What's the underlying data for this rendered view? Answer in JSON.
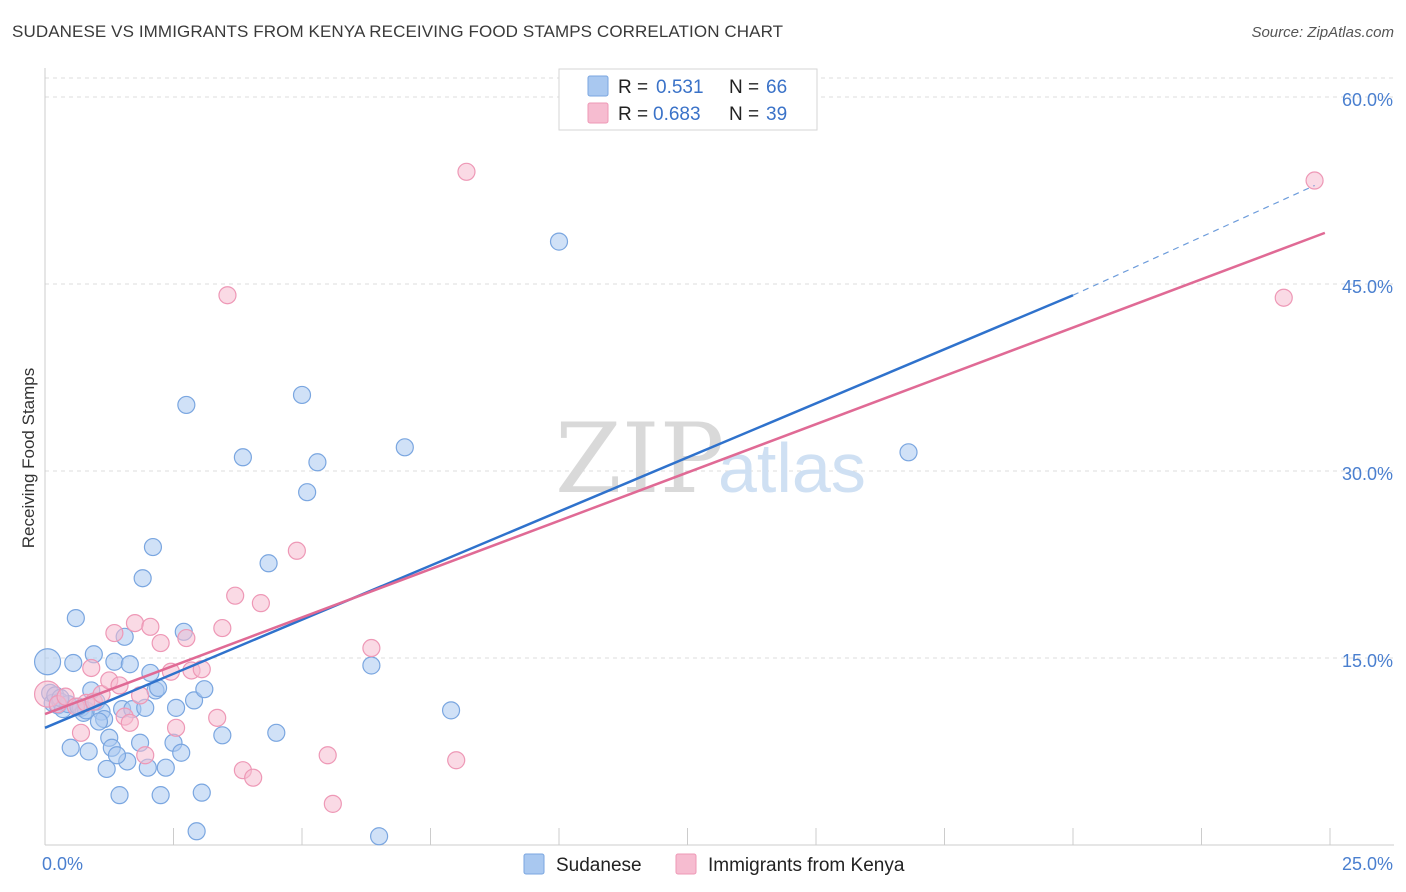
{
  "header": {
    "title": "SUDANESE VS IMMIGRANTS FROM KENYA RECEIVING FOOD STAMPS CORRELATION CHART",
    "source": "Source: ZipAtlas.com"
  },
  "watermark": {
    "part1": "ZIP",
    "part2": "atlas"
  },
  "colors": {
    "sudanese_fill": "#a9c8f0",
    "sudanese_stroke": "#7aa6e0",
    "sudanese_line": "#2f72cc",
    "kenya_fill": "#f6bcd0",
    "kenya_stroke": "#ee98b6",
    "kenya_line": "#e06a95",
    "grid": "#dddddd",
    "tick_text": "#4a7fcf"
  },
  "legend": {
    "rows": [
      {
        "r_label": "R =",
        "r_value": "0.531",
        "n_label": "N =",
        "n_value": "66"
      },
      {
        "r_label": "R =",
        "r_value": "0.683",
        "n_label": "N =",
        "n_value": "39"
      }
    ]
  },
  "chart_data": {
    "type": "scatter",
    "title": "SUDANESE VS IMMIGRANTS FROM KENYA RECEIVING FOOD STAMPS CORRELATION CHART",
    "xlabel": "",
    "ylabel": "Receiving Food Stamps",
    "xlim": [
      0,
      25
    ],
    "ylim": [
      0,
      60
    ],
    "x_tick_labels": [
      "0.0%",
      "25.0%"
    ],
    "y_ticks": [
      15,
      30,
      45,
      60
    ],
    "y_tick_labels": [
      "15.0%",
      "30.0%",
      "45.0%",
      "60.0%"
    ],
    "grid": true,
    "legend_position": "top-center",
    "series": [
      {
        "name": "Sudanese",
        "R": 0.531,
        "N": 66,
        "trend": {
          "x0": 0,
          "y0": 9.4,
          "x1": 20,
          "y1": 44.1,
          "dash_x1": 24.7,
          "dash_y1": 52.9
        },
        "points": [
          [
            0.05,
            14.7
          ],
          [
            0.1,
            12.2
          ],
          [
            0.15,
            11.4
          ],
          [
            0.2,
            12.0
          ],
          [
            0.25,
            11.2
          ],
          [
            0.3,
            11.5
          ],
          [
            0.35,
            10.9
          ],
          [
            0.45,
            11.3
          ],
          [
            0.55,
            14.6
          ],
          [
            0.6,
            18.2
          ],
          [
            0.5,
            7.8
          ],
          [
            0.7,
            11.0
          ],
          [
            0.75,
            10.6
          ],
          [
            0.8,
            10.8
          ],
          [
            0.85,
            7.5
          ],
          [
            0.95,
            15.3
          ],
          [
            1.0,
            11.5
          ],
          [
            1.1,
            10.7
          ],
          [
            1.15,
            10.1
          ],
          [
            1.2,
            6.1
          ],
          [
            1.25,
            8.6
          ],
          [
            1.3,
            7.8
          ],
          [
            1.35,
            14.7
          ],
          [
            1.45,
            4.0
          ],
          [
            1.5,
            10.9
          ],
          [
            1.55,
            16.7
          ],
          [
            1.6,
            6.7
          ],
          [
            1.65,
            14.5
          ],
          [
            1.7,
            10.9
          ],
          [
            1.85,
            8.2
          ],
          [
            1.9,
            21.4
          ],
          [
            1.95,
            11.0
          ],
          [
            2.0,
            6.2
          ],
          [
            2.05,
            13.8
          ],
          [
            2.1,
            23.9
          ],
          [
            2.15,
            12.4
          ],
          [
            2.2,
            12.6
          ],
          [
            2.25,
            4.0
          ],
          [
            2.35,
            6.2
          ],
          [
            2.5,
            8.2
          ],
          [
            2.55,
            11.0
          ],
          [
            2.65,
            7.4
          ],
          [
            2.7,
            17.1
          ],
          [
            2.75,
            35.3
          ],
          [
            2.9,
            11.6
          ],
          [
            2.95,
            1.1
          ],
          [
            3.05,
            4.2
          ],
          [
            3.1,
            12.5
          ],
          [
            3.45,
            8.8
          ],
          [
            3.85,
            31.1
          ],
          [
            4.35,
            22.6
          ],
          [
            4.5,
            9.0
          ],
          [
            5.0,
            36.1
          ],
          [
            5.1,
            28.3
          ],
          [
            5.3,
            30.7
          ],
          [
            6.35,
            14.4
          ],
          [
            6.5,
            0.7
          ],
          [
            7.0,
            31.9
          ],
          [
            7.9,
            10.8
          ],
          [
            10.0,
            48.4
          ],
          [
            16.8,
            31.5
          ],
          [
            0.3,
            11.8
          ],
          [
            0.65,
            11.1
          ],
          [
            1.05,
            9.9
          ],
          [
            1.4,
            7.2
          ],
          [
            0.9,
            12.4
          ]
        ]
      },
      {
        "name": "Immigrants from Kenya",
        "R": 0.683,
        "N": 39,
        "trend": {
          "x0": 0,
          "y0": 10.5,
          "x1": 24.9,
          "y1": 49.1
        },
        "points": [
          [
            0.05,
            12.1
          ],
          [
            0.25,
            11.3
          ],
          [
            0.4,
            11.9
          ],
          [
            0.6,
            11.1
          ],
          [
            0.7,
            9.0
          ],
          [
            0.8,
            11.4
          ],
          [
            0.9,
            14.2
          ],
          [
            0.95,
            11.5
          ],
          [
            1.1,
            12.1
          ],
          [
            1.25,
            13.2
          ],
          [
            1.35,
            17.0
          ],
          [
            1.45,
            12.8
          ],
          [
            1.55,
            10.3
          ],
          [
            1.65,
            9.8
          ],
          [
            1.75,
            17.8
          ],
          [
            1.85,
            12.0
          ],
          [
            1.95,
            7.2
          ],
          [
            2.05,
            17.5
          ],
          [
            2.25,
            16.2
          ],
          [
            2.45,
            13.9
          ],
          [
            2.55,
            9.4
          ],
          [
            2.75,
            16.6
          ],
          [
            2.85,
            14.0
          ],
          [
            3.05,
            14.1
          ],
          [
            3.35,
            10.2
          ],
          [
            3.45,
            17.4
          ],
          [
            3.55,
            44.1
          ],
          [
            3.7,
            20.0
          ],
          [
            3.85,
            6.0
          ],
          [
            4.05,
            5.4
          ],
          [
            4.2,
            19.4
          ],
          [
            4.9,
            23.6
          ],
          [
            5.5,
            7.2
          ],
          [
            5.6,
            3.3
          ],
          [
            6.35,
            15.8
          ],
          [
            8.0,
            6.8
          ],
          [
            8.2,
            54.0
          ],
          [
            24.1,
            43.9
          ],
          [
            24.7,
            53.3
          ]
        ]
      }
    ]
  },
  "bottom_legend": {
    "items": [
      {
        "label": "Sudanese"
      },
      {
        "label": "Immigrants from Kenya"
      }
    ]
  }
}
